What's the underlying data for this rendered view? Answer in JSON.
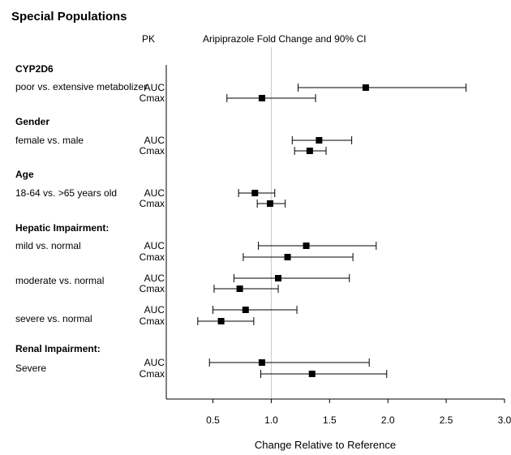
{
  "chart_data": {
    "type": "forest",
    "title": "Special Populations",
    "column_header_pk": "PK",
    "column_header_plot": "Aripiprazole Fold Change and 90% CI",
    "xlabel": "Change Relative to Reference",
    "xlim": [
      0.1,
      3.0
    ],
    "x_ticks": [
      "0.5",
      "1.0",
      "1.5",
      "2.0",
      "2.5",
      "3.0"
    ],
    "reference_line": 1.0,
    "groups": [
      {
        "label": "CYP2D6",
        "subgroups": [
          {
            "label": "poor vs. extensive metabolizer",
            "rows": [
              {
                "pk": "AUC",
                "estimate": 1.81,
                "lower": 1.23,
                "upper": 2.67
              },
              {
                "pk": "Cmax",
                "estimate": 0.92,
                "lower": 0.62,
                "upper": 1.38
              }
            ]
          }
        ]
      },
      {
        "label": "Gender",
        "subgroups": [
          {
            "label": "female vs. male",
            "rows": [
              {
                "pk": "AUC",
                "estimate": 1.41,
                "lower": 1.18,
                "upper": 1.69
              },
              {
                "pk": "Cmax",
                "estimate": 1.33,
                "lower": 1.2,
                "upper": 1.47
              }
            ]
          }
        ]
      },
      {
        "label": "Age",
        "subgroups": [
          {
            "label": "18-64 vs. >65 years old",
            "rows": [
              {
                "pk": "AUC",
                "estimate": 0.86,
                "lower": 0.72,
                "upper": 1.03
              },
              {
                "pk": "Cmax",
                "estimate": 0.99,
                "lower": 0.88,
                "upper": 1.12
              }
            ]
          }
        ]
      },
      {
        "label": "Hepatic Impairment:",
        "subgroups": [
          {
            "label": "mild vs. normal",
            "rows": [
              {
                "pk": "AUC",
                "estimate": 1.3,
                "lower": 0.89,
                "upper": 1.9
              },
              {
                "pk": "Cmax",
                "estimate": 1.14,
                "lower": 0.76,
                "upper": 1.7
              }
            ]
          },
          {
            "label": "moderate vs. normal",
            "rows": [
              {
                "pk": "AUC",
                "estimate": 1.06,
                "lower": 0.68,
                "upper": 1.67
              },
              {
                "pk": "Cmax",
                "estimate": 0.73,
                "lower": 0.51,
                "upper": 1.06
              }
            ]
          },
          {
            "label": "severe vs. normal",
            "rows": [
              {
                "pk": "AUC",
                "estimate": 0.78,
                "lower": 0.5,
                "upper": 1.22
              },
              {
                "pk": "Cmax",
                "estimate": 0.57,
                "lower": 0.37,
                "upper": 0.85
              }
            ]
          }
        ]
      },
      {
        "label": "Renal Impairment:",
        "subgroups": [
          {
            "label": "Severe",
            "rows": [
              {
                "pk": "AUC",
                "estimate": 0.92,
                "lower": 0.47,
                "upper": 1.84
              },
              {
                "pk": "Cmax",
                "estimate": 1.35,
                "lower": 0.91,
                "upper": 1.99
              }
            ]
          }
        ]
      }
    ]
  }
}
